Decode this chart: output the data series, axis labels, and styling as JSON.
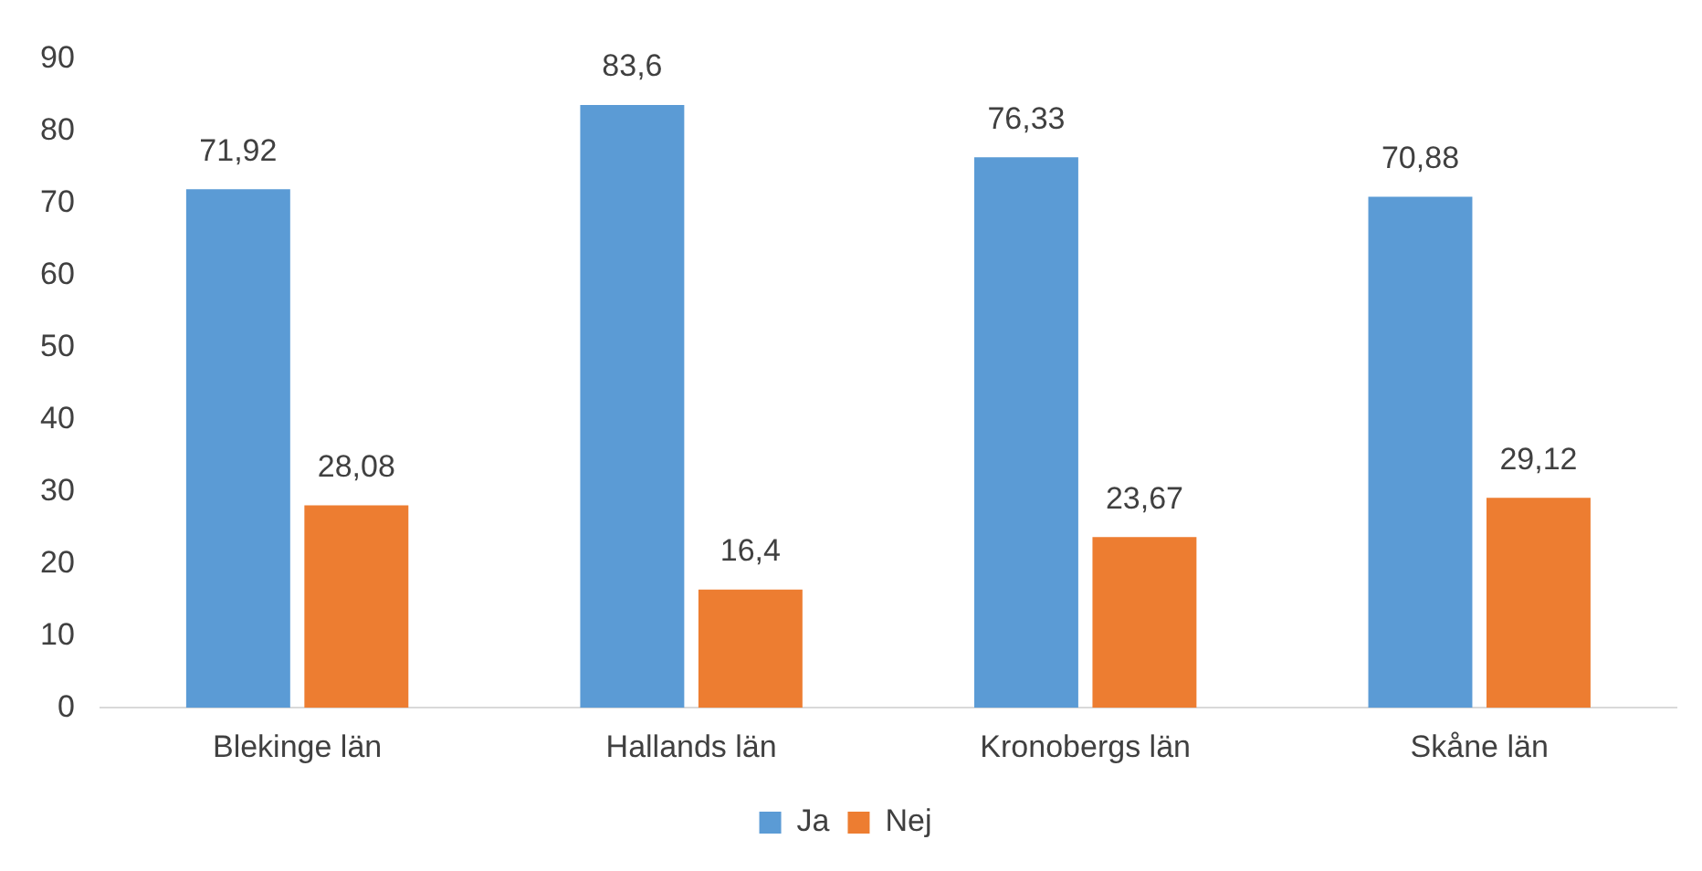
{
  "chart_data": {
    "type": "bar",
    "categories": [
      "Blekinge län",
      "Hallands län",
      "Kronobergs län",
      "Skåne län"
    ],
    "series": [
      {
        "name": "Ja",
        "color": "#5b9bd5",
        "values": [
          71.92,
          83.6,
          76.33,
          70.88
        ],
        "value_labels": [
          "71,92",
          "83,6",
          "76,33",
          "70,88"
        ]
      },
      {
        "name": "Nej",
        "color": "#ed7d31",
        "values": [
          28.08,
          16.4,
          23.67,
          29.12
        ],
        "value_labels": [
          "28,08",
          "16,4",
          "23,67",
          "29,12"
        ]
      }
    ],
    "ylim": [
      0,
      90
    ],
    "yticks": [
      0,
      10,
      20,
      30,
      40,
      50,
      60,
      70,
      80,
      90
    ],
    "grid": false,
    "legend": "bottom"
  }
}
